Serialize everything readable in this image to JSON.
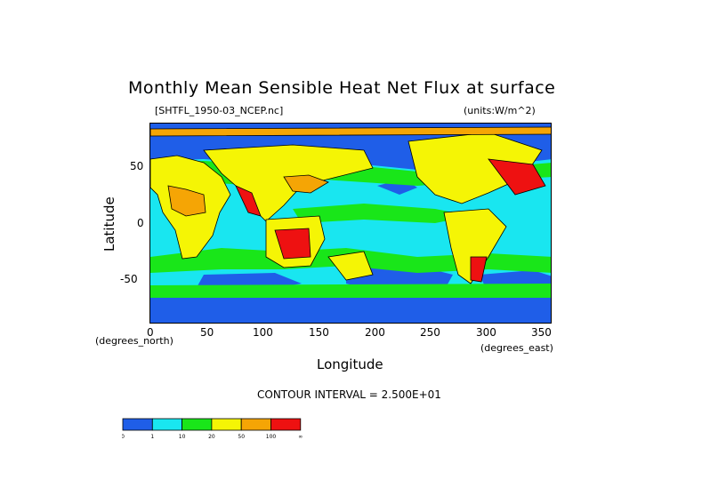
{
  "title": "Monthly Mean Sensible Heat Net Flux at surface",
  "file_label": "[SHTFL_1950-03_NCEP.nc]",
  "units_label": "(units:W/m^2)",
  "x_axis": {
    "label": "Longitude",
    "unit_note": "(degrees_east)",
    "ticks": [
      "0",
      "50",
      "100",
      "150",
      "200",
      "250",
      "300",
      "350"
    ]
  },
  "y_axis": {
    "label": "Latitude",
    "unit_note": "(degrees_north)",
    "ticks": [
      "50",
      "0",
      "-50"
    ]
  },
  "contour_interval": "CONTOUR INTERVAL = 2.500E+01",
  "colorbar": {
    "colors": [
      "#1f5ee8",
      "#19e6f0",
      "#19e619",
      "#f5f505",
      "#f5a505",
      "#ee1111"
    ],
    "labels": [
      "0",
      "1",
      "10",
      "20",
      "50",
      "100",
      "∞"
    ]
  },
  "palette": {
    "ocean_low": "#1f5ee8",
    "cyan": "#19e6f0",
    "green": "#19e619",
    "yellow": "#f5f505",
    "orange": "#f5a505",
    "red": "#ee1111"
  }
}
